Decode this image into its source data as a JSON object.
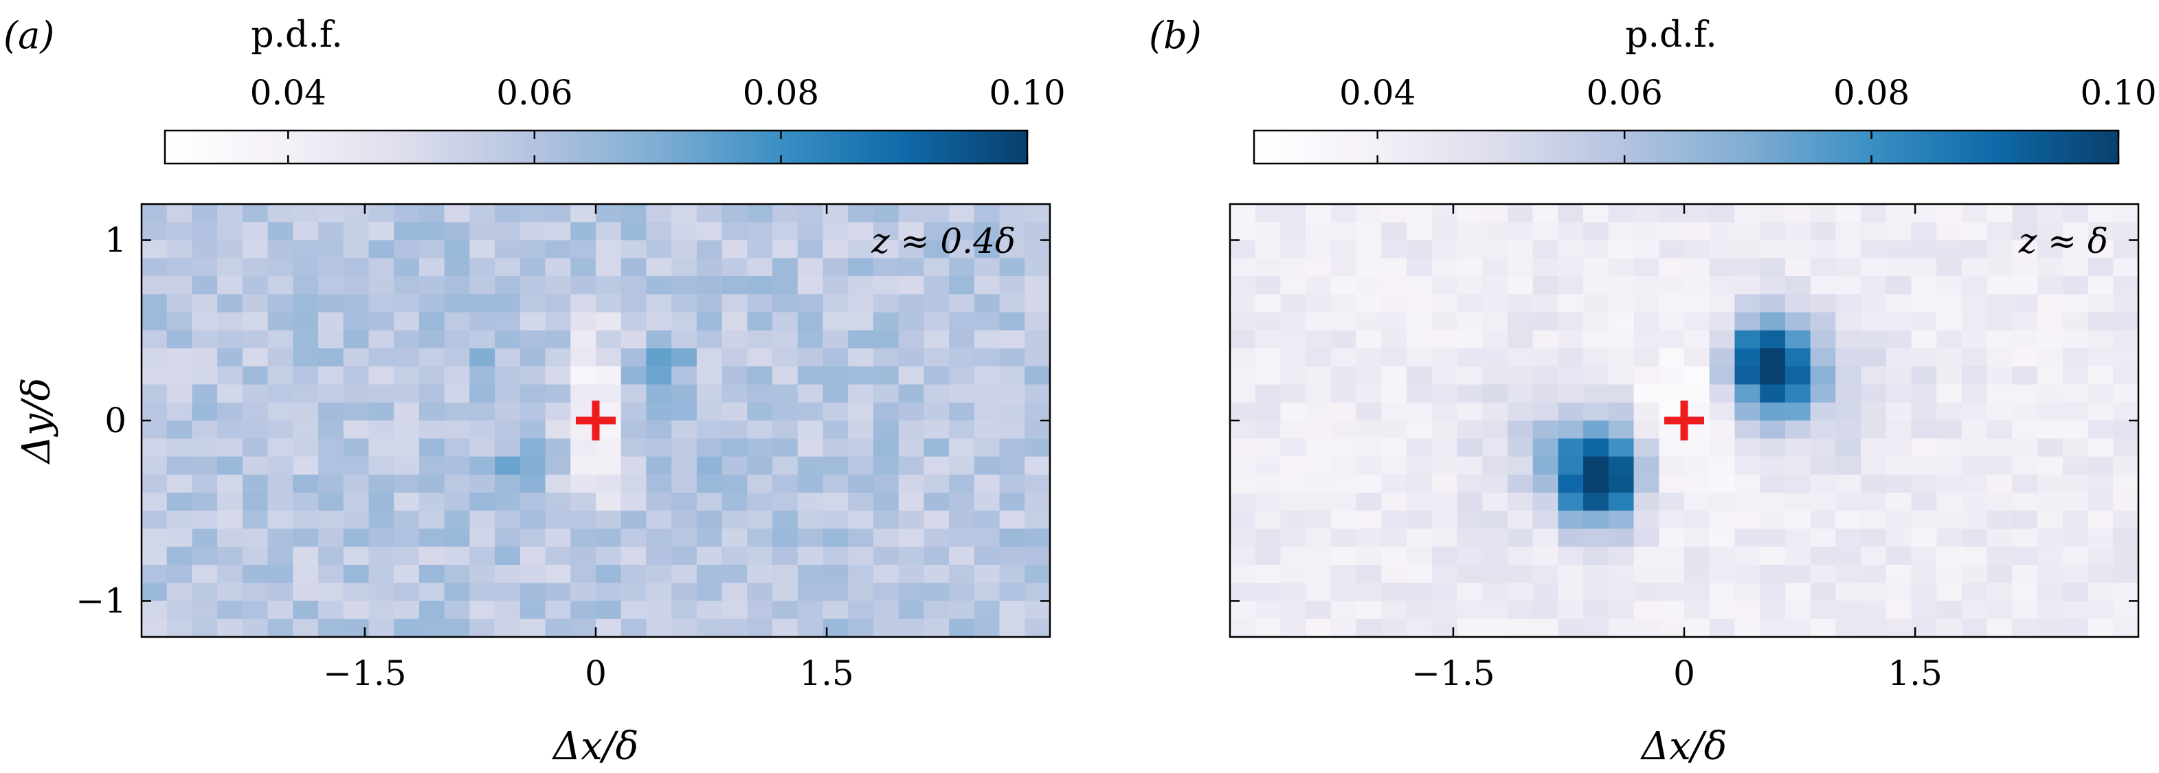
{
  "chart_data": [
    {
      "type": "heatmap",
      "panel_label": "(a)",
      "colorbar": {
        "title": "p.d.f.",
        "range": [
          0.03,
          0.1
        ],
        "ticks": [
          "0.04",
          "0.06",
          "0.08",
          "0.10"
        ],
        "tick_values": [
          0.04,
          0.06,
          0.08,
          0.1
        ]
      },
      "annotation": "z ≈ 0.4δ",
      "xlabel": "Δx/δ",
      "ylabel": "Δy/δ",
      "xticks": [
        "−1.5",
        "0",
        "1.5"
      ],
      "xtick_values": [
        -1.5,
        0,
        1.5
      ],
      "yticks": [
        "1",
        "0",
        "−1"
      ],
      "ytick_values": [
        1,
        0,
        -1
      ],
      "xlim": [
        -2.95,
        2.95
      ],
      "ylim": [
        -1.2,
        1.2
      ],
      "grid": {
        "nx": 36,
        "ny": 24,
        "base": 0.058,
        "noise": 0.007
      },
      "features": [
        {
          "x": 0.0,
          "y": 0.05,
          "sx": 0.12,
          "sy": 0.32,
          "amp": -0.028
        },
        {
          "x": 0.42,
          "y": 0.27,
          "sx": 0.12,
          "sy": 0.09,
          "amp": 0.022
        },
        {
          "x": -0.5,
          "y": -0.27,
          "sx": 0.12,
          "sy": 0.09,
          "amp": 0.02
        },
        {
          "x": -0.75,
          "y": 0.45,
          "sx": 0.2,
          "sy": 0.14,
          "amp": 0.006
        },
        {
          "x": 0.75,
          "y": -0.4,
          "sx": 0.2,
          "sy": 0.14,
          "amp": 0.005
        }
      ],
      "marker": {
        "x": 0,
        "y": 0,
        "symbol": "+",
        "color": "#ee1c1c"
      }
    },
    {
      "type": "heatmap",
      "panel_label": "(b)",
      "colorbar": {
        "title": "p.d.f.",
        "range": [
          0.03,
          0.1
        ],
        "ticks": [
          "0.04",
          "0.06",
          "0.08",
          "0.10"
        ],
        "tick_values": [
          0.04,
          0.06,
          0.08,
          0.1
        ]
      },
      "annotation": "z ≈ δ",
      "xlabel": "Δx/δ",
      "ylabel": "",
      "xticks": [
        "−1.5",
        "0",
        "1.5"
      ],
      "xtick_values": [
        -1.5,
        0,
        1.5
      ],
      "yticks": [],
      "ytick_values": [
        1,
        0,
        -1
      ],
      "xlim": [
        -2.95,
        2.95
      ],
      "ylim": [
        -1.2,
        1.2
      ],
      "grid": {
        "nx": 36,
        "ny": 24,
        "base": 0.042,
        "noise": 0.005
      },
      "features": [
        {
          "x": 0.55,
          "y": 0.3,
          "sx": 0.2,
          "sy": 0.2,
          "amp": 0.062
        },
        {
          "x": -0.55,
          "y": -0.3,
          "sx": 0.2,
          "sy": 0.2,
          "amp": 0.062
        },
        {
          "x": 0.0,
          "y": 0.0,
          "sx": 0.25,
          "sy": 0.3,
          "amp": -0.012
        },
        {
          "x": -0.95,
          "y": -0.15,
          "sx": 0.35,
          "sy": 0.3,
          "amp": 0.01
        },
        {
          "x": 0.95,
          "y": 0.15,
          "sx": 0.35,
          "sy": 0.3,
          "amp": 0.01
        }
      ],
      "marker": {
        "x": 0,
        "y": 0,
        "symbol": "+",
        "color": "#ee1c1c"
      }
    }
  ],
  "colormap": [
    "#ffffff",
    "#f4f0f7",
    "#dbdcec",
    "#b3c3e0",
    "#7fadd3",
    "#3a8fc4",
    "#0f6aa9",
    "#08406e"
  ]
}
